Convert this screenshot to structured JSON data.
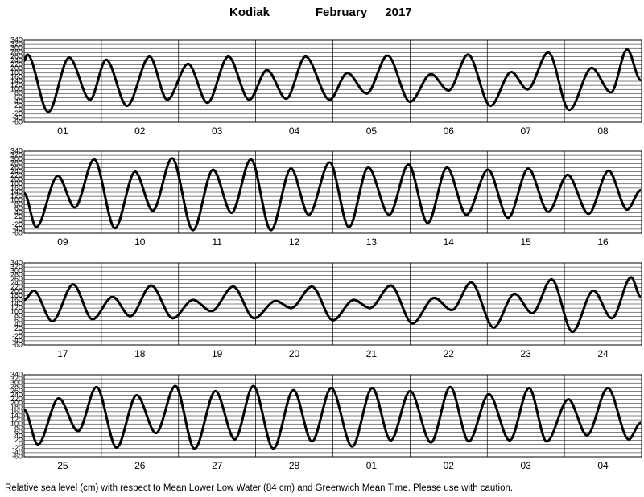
{
  "header": {
    "place": "Kodiak",
    "month": "February",
    "year": "2017"
  },
  "note": "Relative sea level (cm) with respect to Mean Lower Low Water (84 cm) and Greenwich Mean Time. Please use with caution.",
  "chart_data": [
    {
      "type": "line",
      "categories": [
        "01",
        "02",
        "03",
        "04",
        "05",
        "06",
        "07",
        "08"
      ],
      "xlim": [
        0,
        192
      ],
      "ylim": [
        -60,
        340
      ],
      "yticks": [
        -60,
        -40,
        -20,
        0,
        20,
        40,
        60,
        80,
        100,
        120,
        140,
        160,
        180,
        200,
        220,
        240,
        260,
        280,
        300,
        320,
        340
      ],
      "grid": true,
      "x": [
        0,
        1,
        7.5,
        14,
        20.5,
        25.5,
        32,
        39,
        44.5,
        51,
        57,
        63.5,
        70,
        75.5,
        81.5,
        87.5,
        95,
        100.5,
        106.5,
        113,
        120,
        126.5,
        132,
        138,
        145,
        151.5,
        156.5,
        163,
        169.5,
        176.5,
        182.5,
        187.5,
        191.75
      ],
      "series": [
        {
          "color": "#000000",
          "values": [
            240,
            270,
            -10,
            255,
            50,
            245,
            20,
            260,
            50,
            225,
            35,
            260,
            50,
            195,
            55,
            260,
            50,
            180,
            80,
            265,
            40,
            175,
            95,
            270,
            20,
            185,
            100,
            280,
            0,
            205,
            85,
            295,
            145
          ]
        }
      ]
    },
    {
      "type": "line",
      "categories": [
        "09",
        "10",
        "11",
        "12",
        "13",
        "14",
        "15",
        "16"
      ],
      "xlim": [
        0,
        192
      ],
      "ylim": [
        -60,
        340
      ],
      "yticks": [
        -60,
        -40,
        -20,
        0,
        20,
        40,
        60,
        80,
        100,
        120,
        140,
        160,
        180,
        200,
        220,
        240,
        260,
        280,
        300,
        320,
        340
      ],
      "grid": true,
      "x": [
        0,
        3.75,
        10.5,
        15.75,
        21.75,
        28.25,
        34.5,
        40,
        46,
        52.5,
        58.75,
        64.5,
        70.5,
        76.75,
        83,
        88.5,
        95,
        101,
        107,
        113.5,
        119.5,
        125.5,
        131.5,
        137.5,
        144.25,
        150.5,
        156.75,
        163,
        169,
        175.5,
        181.75,
        187.5,
        191.75
      ],
      "series": [
        {
          "color": "#000000",
          "values": [
            135,
            -30,
            220,
            65,
            300,
            -35,
            240,
            50,
            305,
            -45,
            250,
            40,
            300,
            -45,
            255,
            30,
            285,
            -30,
            260,
            30,
            275,
            -10,
            260,
            30,
            250,
            15,
            255,
            45,
            225,
            35,
            245,
            55,
            150
          ]
        }
      ]
    },
    {
      "type": "line",
      "categories": [
        "17",
        "18",
        "19",
        "20",
        "21",
        "22",
        "23",
        "24"
      ],
      "xlim": [
        0,
        192
      ],
      "ylim": [
        -60,
        340
      ],
      "yticks": [
        -60,
        -40,
        -20,
        0,
        20,
        40,
        60,
        80,
        100,
        120,
        140,
        160,
        180,
        200,
        220,
        240,
        260,
        280,
        300,
        320,
        340
      ],
      "grid": true,
      "x": [
        0,
        3,
        8.75,
        15.25,
        21.25,
        27.5,
        33,
        39.5,
        46.25,
        52.5,
        58.25,
        65,
        71.5,
        78.25,
        83,
        89.5,
        96,
        102.5,
        107.5,
        114,
        120.75,
        127.5,
        133,
        139,
        146,
        152.5,
        158,
        164,
        170.5,
        177,
        182.75,
        188.75,
        191.75
      ],
      "series": [
        {
          "color": "#000000",
          "values": [
            160,
            205,
            55,
            235,
            65,
            175,
            80,
            230,
            70,
            160,
            105,
            225,
            70,
            155,
            120,
            225,
            60,
            160,
            120,
            230,
            45,
            170,
            110,
            245,
            25,
            190,
            95,
            260,
            5,
            205,
            70,
            270,
            175
          ]
        }
      ]
    },
    {
      "type": "line",
      "categories": [
        "25",
        "26",
        "27",
        "28",
        "01",
        "02",
        "03",
        "04"
      ],
      "xlim": [
        0,
        192
      ],
      "ylim": [
        -60,
        340
      ],
      "yticks": [
        -60,
        -40,
        -20,
        0,
        20,
        40,
        60,
        80,
        100,
        120,
        140,
        160,
        180,
        200,
        220,
        240,
        260,
        280,
        300,
        320,
        340
      ],
      "grid": true,
      "x": [
        0,
        4.25,
        10.75,
        16.75,
        22.5,
        28.75,
        35,
        41,
        47,
        53,
        59.5,
        65.5,
        71.25,
        77.5,
        83.75,
        89.5,
        95.5,
        102,
        108.25,
        114,
        120,
        126.5,
        132.5,
        138.25,
        144.5,
        151,
        157,
        162.5,
        169.25,
        175,
        181.5,
        188,
        191.75
      ],
      "series": [
        {
          "color": "#000000",
          "values": [
            170,
            0,
            225,
            65,
            280,
            -15,
            240,
            55,
            285,
            -20,
            260,
            25,
            285,
            -20,
            265,
            15,
            275,
            -10,
            275,
            20,
            260,
            10,
            280,
            15,
            245,
            20,
            275,
            15,
            220,
            45,
            275,
            25,
            105
          ]
        }
      ]
    }
  ]
}
